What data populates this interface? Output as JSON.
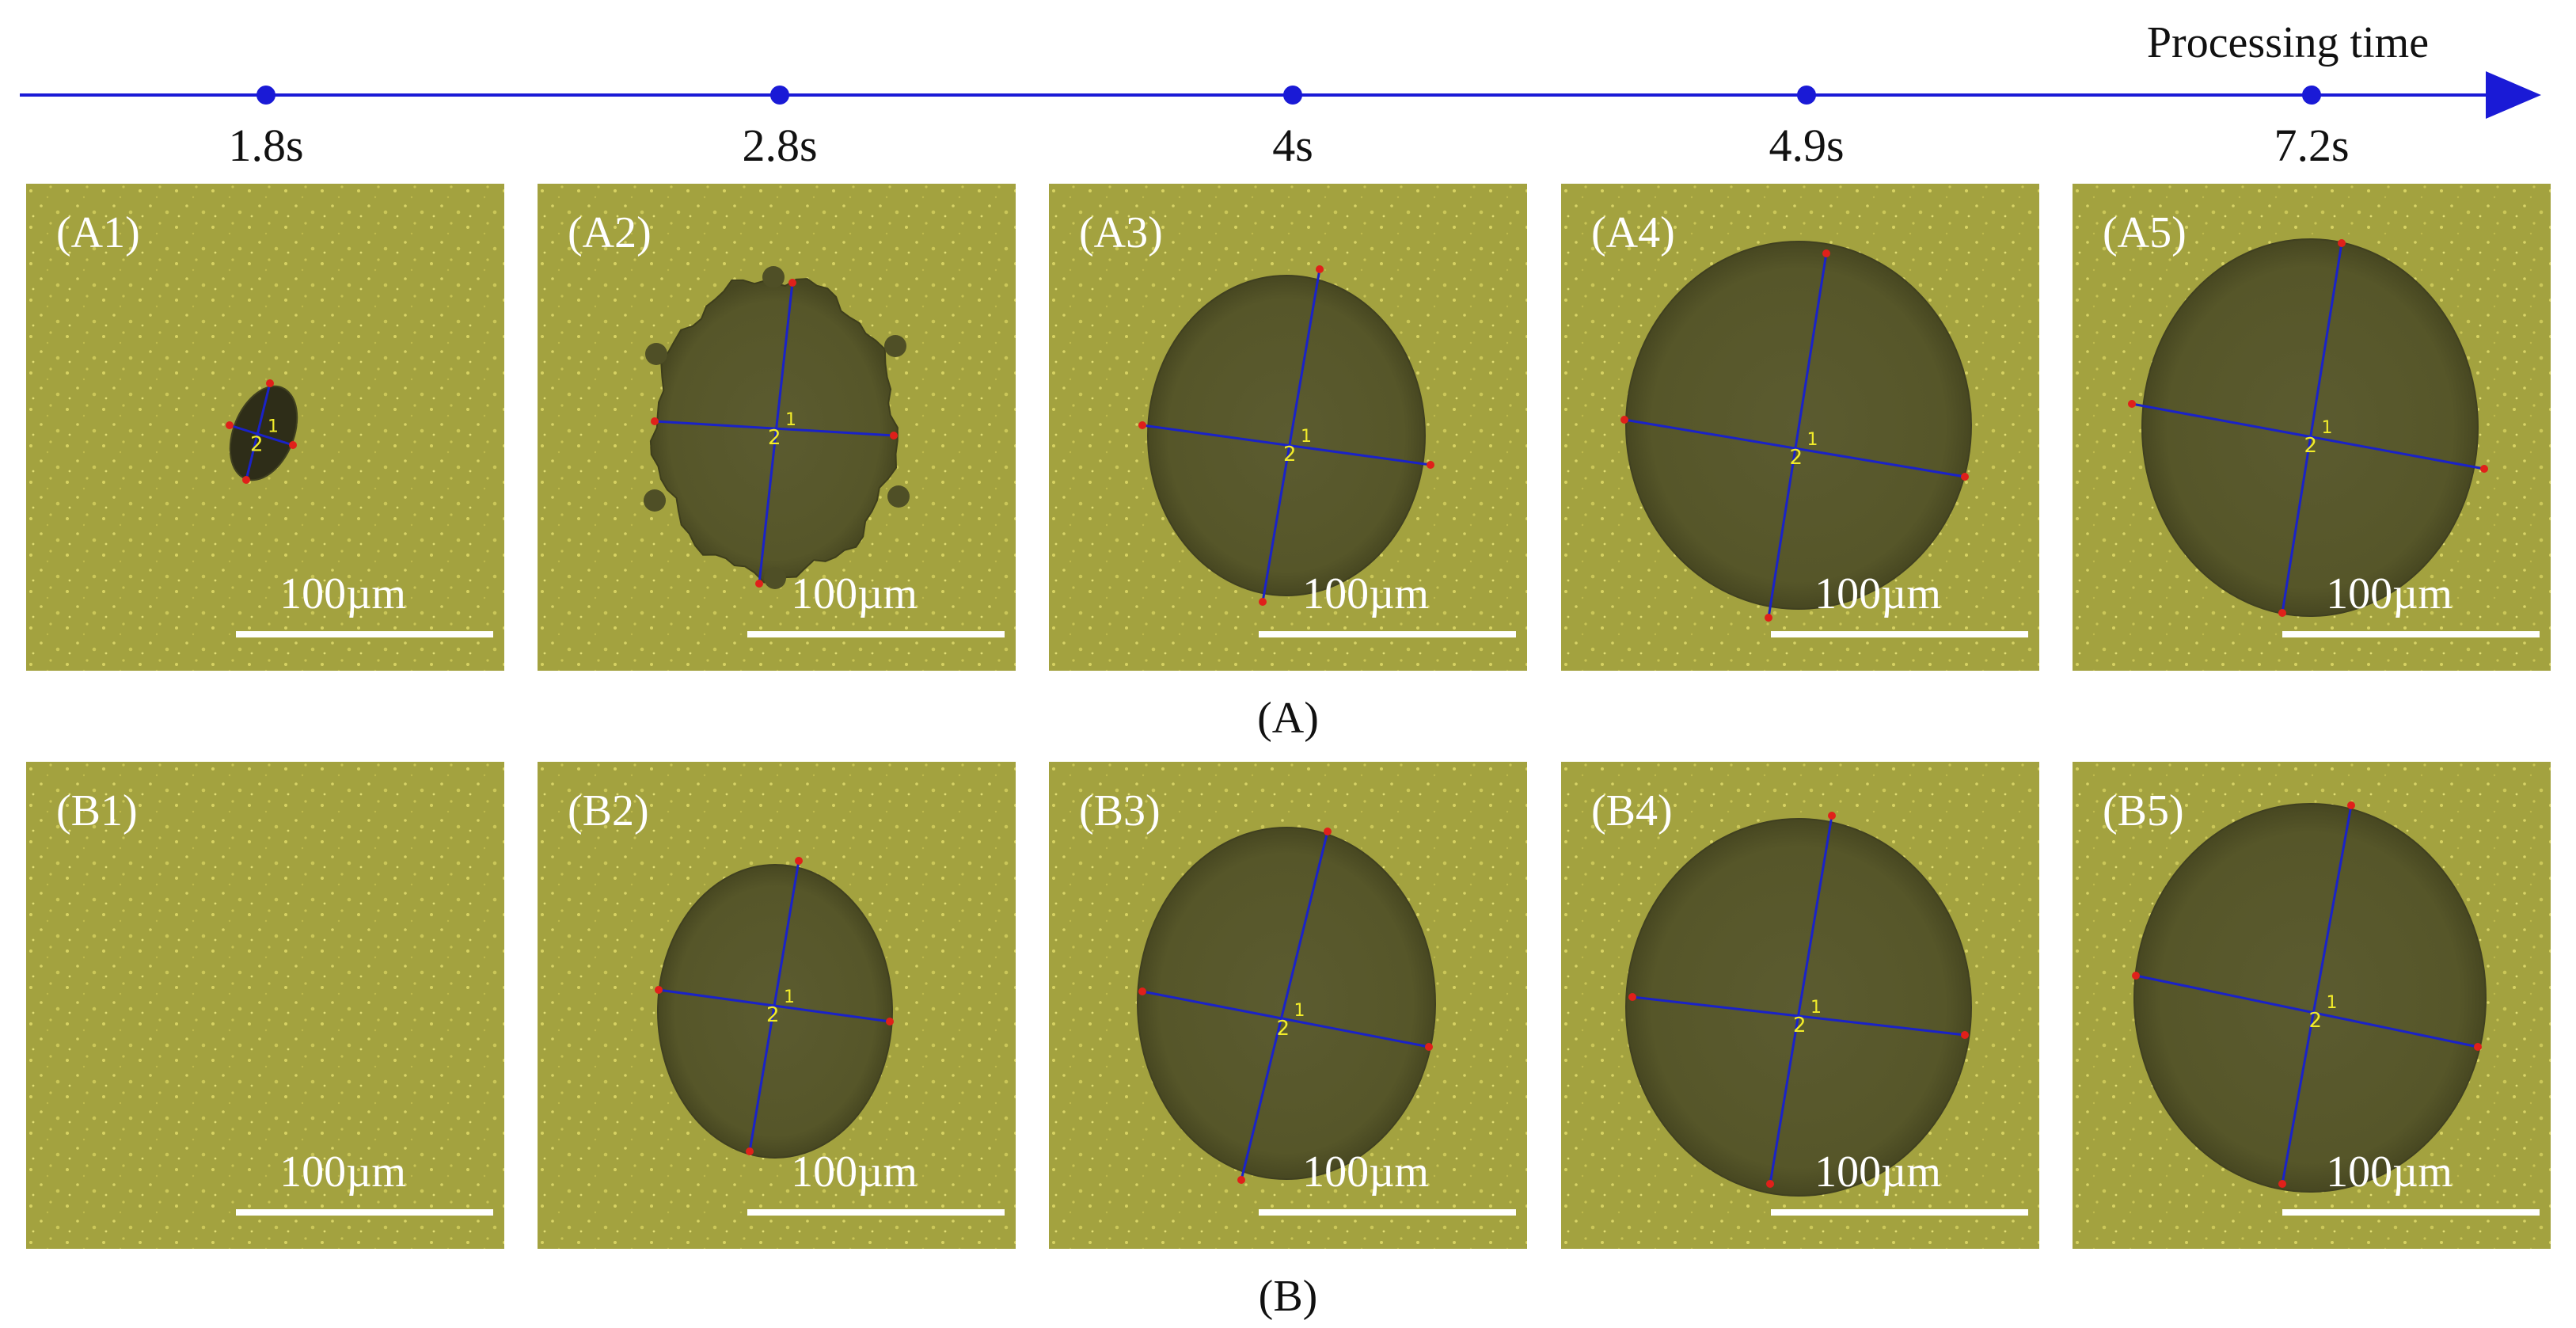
{
  "timeline": {
    "label": "Processing time",
    "times": [
      "1.8s",
      "2.8s",
      "4s",
      "4.9s",
      "7.2s"
    ]
  },
  "rows": [
    {
      "caption": "(A)",
      "panels": [
        {
          "label": "(A1)",
          "scale": "100µm",
          "measure_ids": [
            "1",
            "2"
          ]
        },
        {
          "label": "(A2)",
          "scale": "100µm",
          "measure_ids": [
            "1",
            "2"
          ]
        },
        {
          "label": "(A3)",
          "scale": "100µm",
          "measure_ids": [
            "1",
            "2"
          ]
        },
        {
          "label": "(A4)",
          "scale": "100µm",
          "measure_ids": [
            "1",
            "2"
          ]
        },
        {
          "label": "(A5)",
          "scale": "100µm",
          "measure_ids": [
            "1",
            "2"
          ]
        }
      ]
    },
    {
      "caption": "(B)",
      "panels": [
        {
          "label": "(B1)",
          "scale": "100µm",
          "measure_ids": []
        },
        {
          "label": "(B2)",
          "scale": "100µm",
          "measure_ids": [
            "1",
            "2"
          ]
        },
        {
          "label": "(B3)",
          "scale": "100µm",
          "measure_ids": [
            "1",
            "2"
          ]
        },
        {
          "label": "(B4)",
          "scale": "100µm",
          "measure_ids": [
            "1",
            "2"
          ]
        },
        {
          "label": "(B5)",
          "scale": "100µm",
          "measure_ids": [
            "1",
            "2"
          ]
        }
      ]
    }
  ],
  "colors": {
    "timeline": "#1a1ad6",
    "substrate": "#a3a23f",
    "substrate_light": "#b4b24c",
    "hole": "#5a5a30",
    "hole_dark": "#2e2d18",
    "measure_line": "#1a22c8",
    "endpoint": "#e0201a",
    "label_text": "#ffffff",
    "scalebar": "#ffffff",
    "measure_text": "#f2ec2a"
  }
}
